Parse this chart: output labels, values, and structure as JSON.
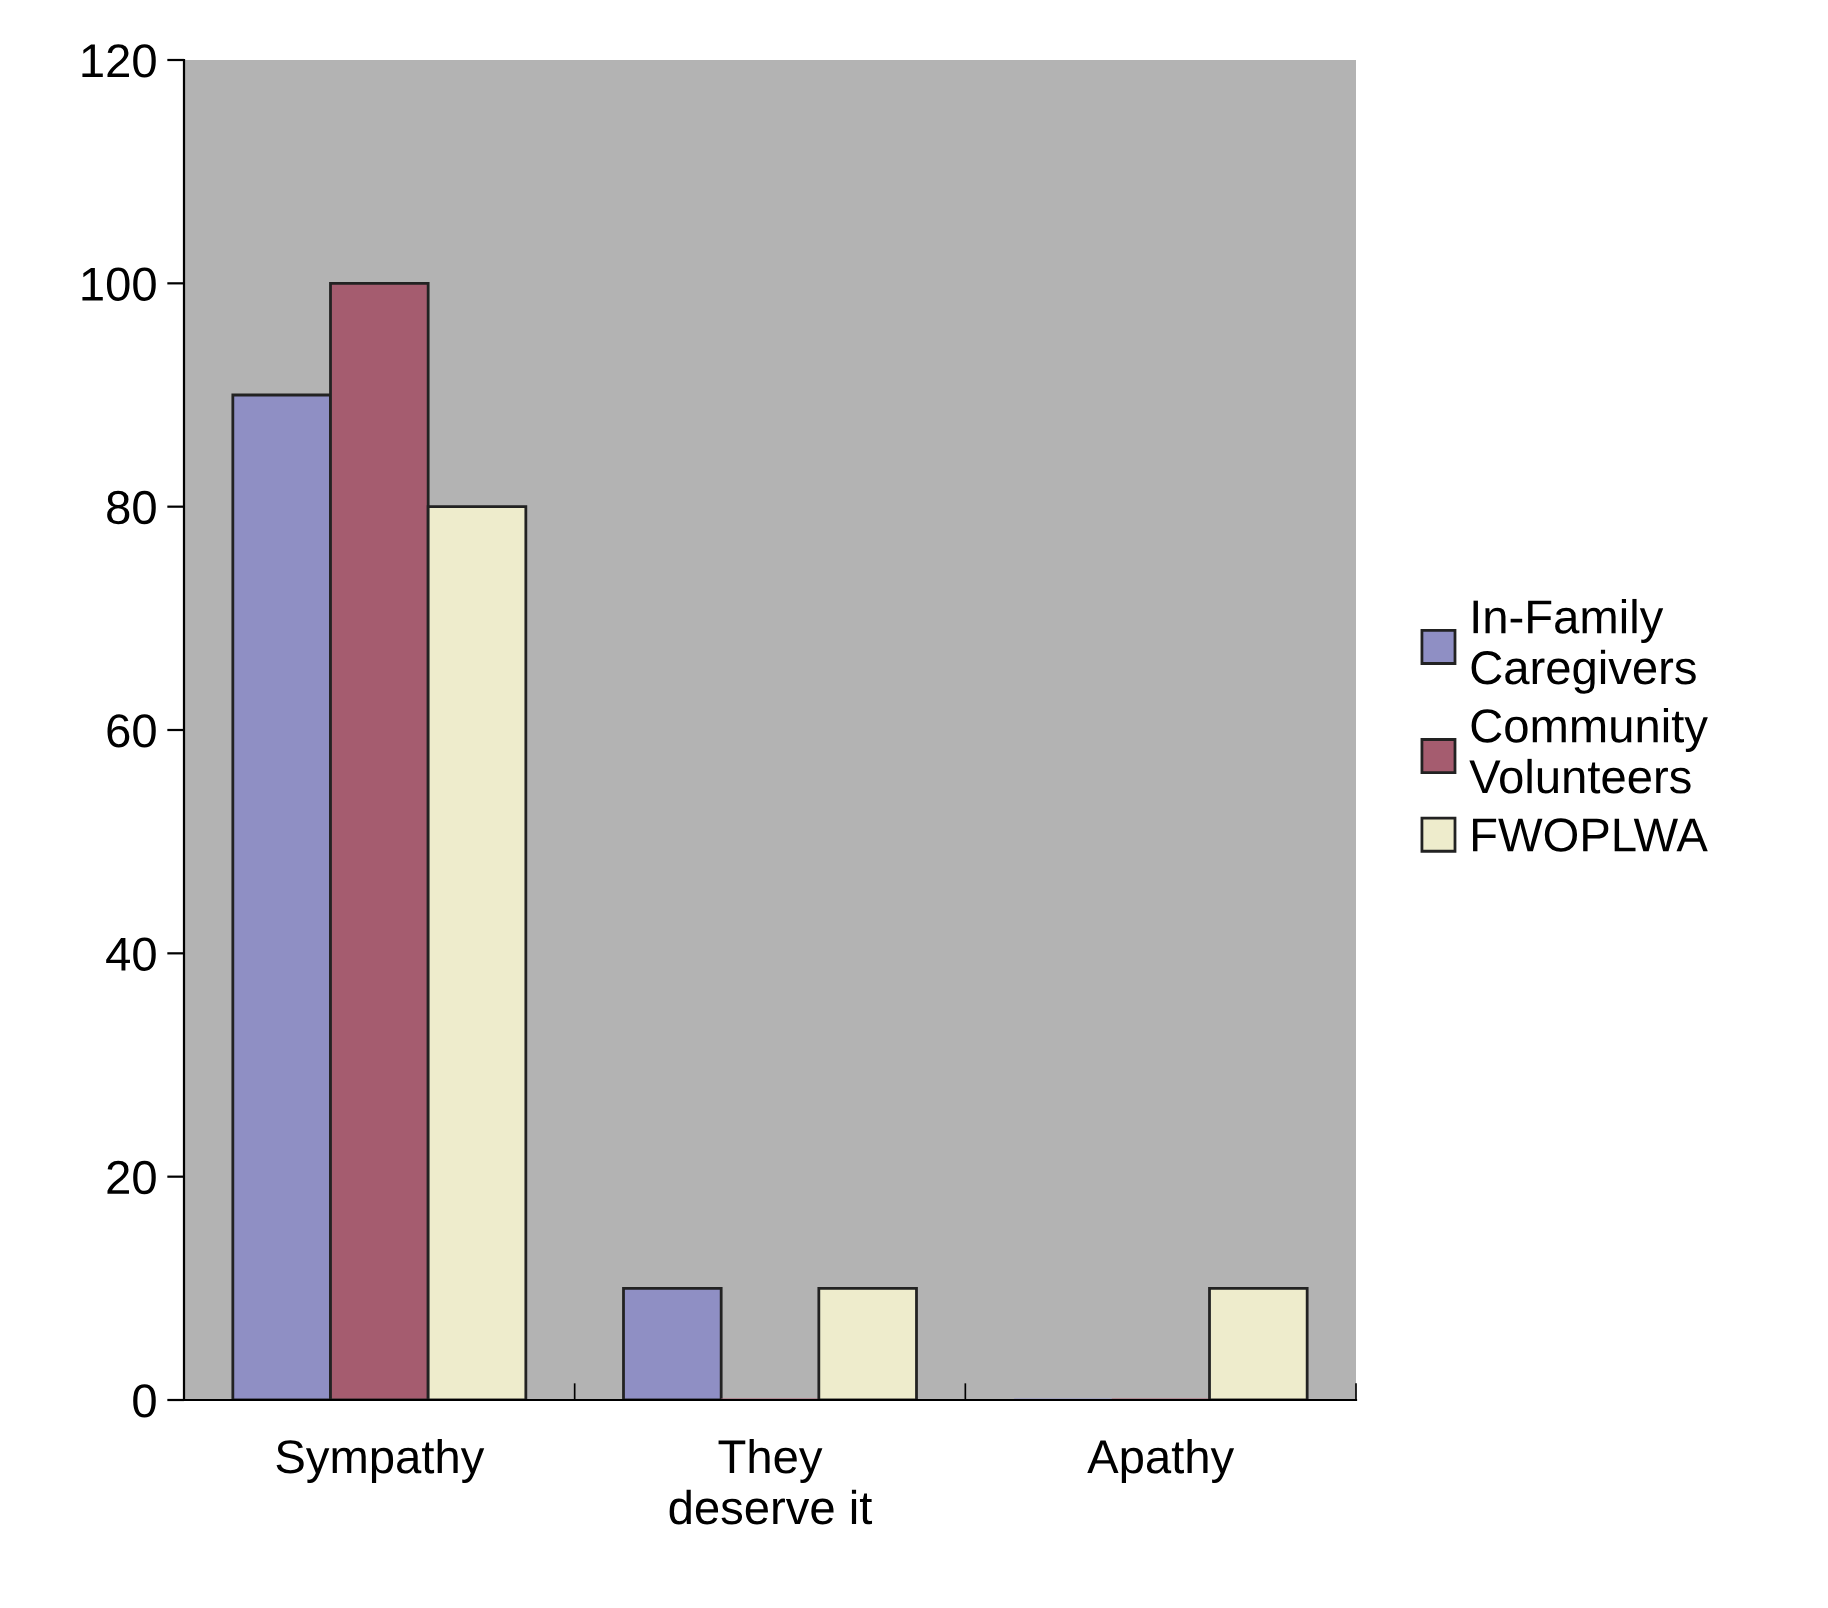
{
  "chart_data": {
    "type": "bar",
    "categories": [
      "Sympathy",
      "They\ndeserve it",
      "Apathy"
    ],
    "series": [
      {
        "name": "In-Family\nCaregivers",
        "color": "#8f8fc4",
        "values": [
          90,
          10,
          0
        ]
      },
      {
        "name": "Community\nVolunteers",
        "color": "#a55c6f",
        "values": [
          100,
          0,
          0
        ]
      },
      {
        "name": "FWOPLWA",
        "color": "#eeeccc",
        "values": [
          80,
          10,
          10
        ]
      }
    ],
    "ylim": [
      0,
      120
    ],
    "yticks": [
      0,
      20,
      40,
      60,
      80,
      100,
      120
    ],
    "grid": false,
    "legend": "right"
  }
}
